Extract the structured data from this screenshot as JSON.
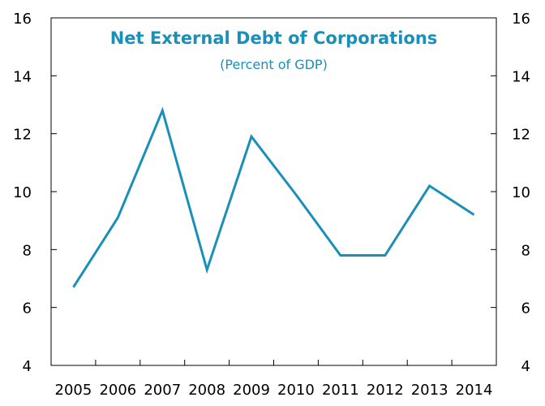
{
  "chart_data": {
    "type": "line",
    "title": "Net External Debt of Corporations",
    "subtitle": "(Percent of GDP)",
    "xlabel": "",
    "ylabel": "",
    "categories": [
      "2005",
      "2006",
      "2007",
      "2008",
      "2009",
      "2010",
      "2011",
      "2012",
      "2013",
      "2014"
    ],
    "series": [
      {
        "values": [
          6.7,
          9.1,
          12.8,
          7.3,
          11.9,
          9.9,
          7.8,
          7.8,
          10.2,
          9.2
        ]
      }
    ],
    "ylim": [
      4,
      16
    ],
    "yticks": [
      "4",
      "6",
      "8",
      "10",
      "12",
      "14",
      "16"
    ],
    "secondary_y_axis": true,
    "grid": false,
    "legend": "none",
    "colors": {
      "line": "#1a8fba",
      "title": "#1a8fba",
      "subtitle": "#1a8fba",
      "axis": "#000000"
    }
  }
}
